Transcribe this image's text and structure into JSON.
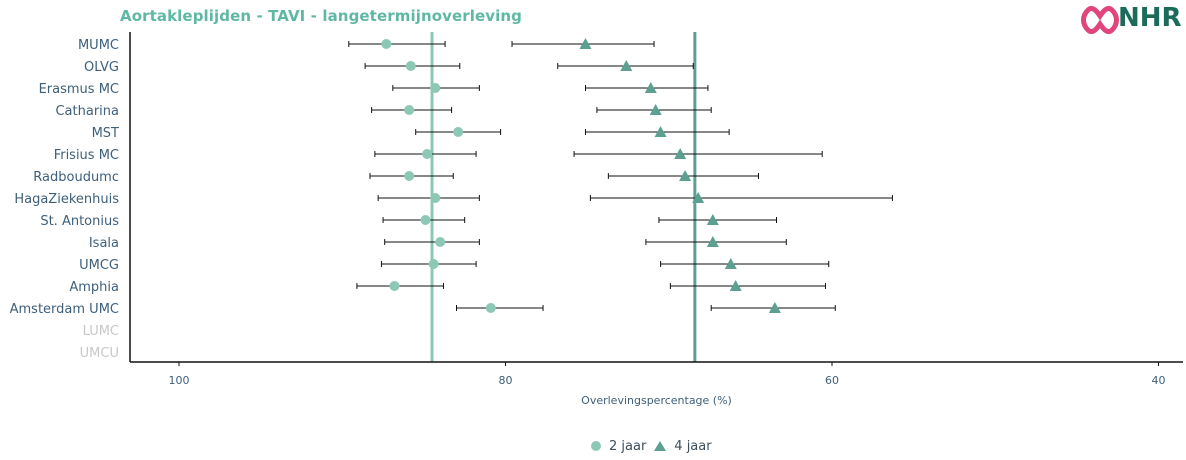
{
  "chart_data": {
    "type": "scatter",
    "title": "Aortakleplijden - TAVI - langetermijnoverleving",
    "xlabel": "Overlevingspercentage (%)",
    "ylabel": "",
    "x_reversed": true,
    "xlim": [
      103,
      38.5
    ],
    "xticks": [
      100,
      80,
      60,
      40
    ],
    "categories": [
      "MUMC",
      "OLVG",
      "Erasmus MC",
      "Catharina",
      "MST",
      "Frisius MC",
      "Radboudumc",
      "HagaZiekenhuis",
      "St. Antonius",
      "Isala",
      "UMCG",
      "Amphia",
      "Amsterdam UMC",
      "LUMC",
      "UMCU"
    ],
    "grey_categories": [
      "LUMC",
      "UMCU"
    ],
    "series": [
      {
        "name": "2 jaar",
        "marker": "circle",
        "color": "#8cc8b5",
        "reference_line": 84.5,
        "values": [
          87.3,
          85.8,
          84.3,
          85.9,
          82.9,
          84.8,
          85.9,
          84.3,
          84.9,
          84.0,
          84.4,
          86.8,
          80.9,
          null,
          null
        ],
        "lower": [
          83.7,
          82.8,
          81.6,
          83.3,
          80.3,
          81.8,
          83.2,
          81.6,
          82.5,
          81.6,
          81.8,
          83.8,
          77.7,
          null,
          null
        ],
        "upper": [
          89.6,
          88.6,
          86.9,
          88.2,
          85.5,
          88.0,
          88.3,
          87.8,
          87.5,
          87.4,
          87.6,
          89.1,
          83.0,
          null,
          null
        ]
      },
      {
        "name": "4 jaar",
        "marker": "triangle",
        "color": "#5ba090",
        "reference_line": 68.4,
        "values": [
          75.1,
          72.6,
          71.1,
          70.8,
          70.5,
          69.3,
          69.0,
          68.2,
          67.3,
          67.3,
          66.2,
          65.9,
          63.5,
          null,
          null
        ],
        "lower": [
          70.9,
          68.5,
          67.6,
          67.4,
          66.3,
          60.6,
          64.5,
          56.3,
          63.4,
          62.8,
          60.2,
          60.4,
          59.8,
          null,
          null
        ],
        "upper": [
          79.6,
          76.8,
          75.1,
          74.4,
          75.1,
          75.8,
          73.7,
          74.8,
          70.6,
          71.4,
          70.5,
          69.9,
          67.4,
          null,
          null
        ]
      }
    ]
  },
  "logo": {
    "text": "NHR"
  }
}
